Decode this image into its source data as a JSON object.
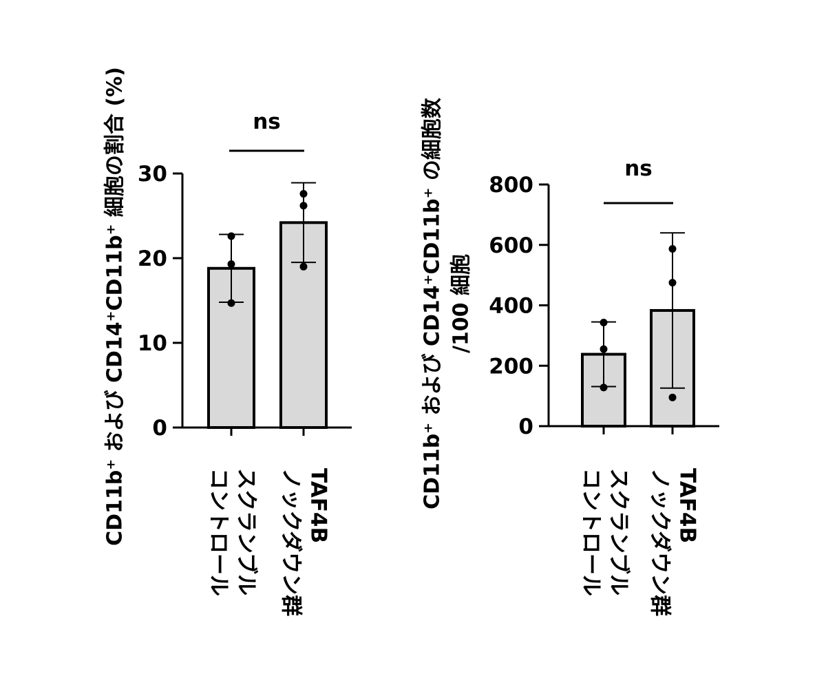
{
  "chart_data": [
    {
      "type": "bar",
      "ylabel": "CD11b⁺ および CD14⁺CD11b⁺ 細胞の割合 (%)",
      "ylabel_lines": [
        "CD11b⁺ および CD14⁺CD11b⁺ 細胞の割合 (%)"
      ],
      "ylim": [
        0,
        30
      ],
      "yticks": [
        "0",
        "10",
        "20",
        "30"
      ],
      "categories": [
        [
          "スクランブル",
          "コントロール"
        ],
        [
          "TAF4B",
          "ノックダウン群"
        ]
      ],
      "values": [
        18.8,
        24.2
      ],
      "error": [
        4.0,
        4.7
      ],
      "points": [
        [
          22.6,
          19.3,
          14.7
        ],
        [
          27.6,
          26.2,
          19.0
        ]
      ],
      "significance": "ns",
      "bar_color": "#d9d9d9"
    },
    {
      "type": "bar",
      "ylabel": "CD11b⁺ および CD14⁺CD11b⁺ の細胞数 /100 細胞",
      "ylabel_lines": [
        "CD11b⁺ および CD14⁺CD11b⁺ の細胞数",
        "/100 細胞"
      ],
      "ylim": [
        0,
        800
      ],
      "yticks": [
        "0",
        "200",
        "400",
        "600",
        "800"
      ],
      "categories": [
        [
          "スクランブル",
          "コントロール"
        ],
        [
          "TAF4B",
          "ノックダウン群"
        ]
      ],
      "values": [
        238,
        383
      ],
      "error": [
        107,
        257
      ],
      "points": [
        [
          343,
          255,
          128
        ],
        [
          587,
          475,
          95
        ]
      ],
      "significance": "ns",
      "bar_color": "#d9d9d9"
    }
  ]
}
